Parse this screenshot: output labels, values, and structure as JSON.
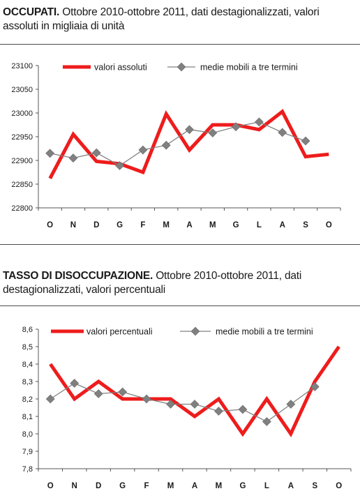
{
  "charts": [
    {
      "title_bold": "OCCUPATI.",
      "title_rest": " Ottobre 2010-ottobre 2011, dati destagionalizzati, valori assoluti in migliaia di unità"
    },
    {
      "title_bold": "TASSO DI DISOCCUPAZIONE.",
      "title_rest": " Ottobre 2010-ottobre 2011, dati destagionalizzati, valori percentuali"
    }
  ],
  "chart_data": [
    {
      "type": "line",
      "title": "OCCUPATI. Ottobre 2010-ottobre 2011, dati destagionalizzati, valori assoluti in migliaia di unità",
      "categories": [
        "O",
        "N",
        "D",
        "G",
        "F",
        "M",
        "A",
        "M",
        "G",
        "L",
        "A",
        "S",
        "O"
      ],
      "ylim": [
        22800,
        23100
      ],
      "yticks": [
        "22800",
        "22850",
        "22900",
        "22950",
        "23000",
        "23050",
        "23100"
      ],
      "grid": false,
      "legend_position": "top",
      "series": [
        {
          "name": "valori assoluti",
          "color": "#ee1c1c",
          "marker": "none",
          "values": [
            22862,
            22955,
            22898,
            22893,
            22875,
            22998,
            22922,
            22975,
            22975,
            22965,
            23003,
            22908,
            22913
          ]
        },
        {
          "name": "medie mobili a tre termini",
          "color": "#808080",
          "marker": "diamond",
          "values": [
            22915,
            22905,
            22916,
            22889,
            22922,
            22932,
            22965,
            22958,
            22971,
            22981,
            22959,
            22941,
            null
          ]
        }
      ]
    },
    {
      "type": "line",
      "title": "TASSO DI DISOCCUPAZIONE. Ottobre 2010-ottobre 2011, dati destagionalizzati, valori percentuali",
      "categories": [
        "O",
        "N",
        "D",
        "G",
        "F",
        "M",
        "A",
        "M",
        "G",
        "L",
        "A",
        "S",
        "O"
      ],
      "ylim": [
        7.8,
        8.6
      ],
      "yticks": [
        "7,8",
        "7,9",
        "8,0",
        "8,1",
        "8,2",
        "8,3",
        "8,4",
        "8,5",
        "8,6"
      ],
      "grid": false,
      "legend_position": "top",
      "series": [
        {
          "name": "valori percentuali",
          "color": "#ee1c1c",
          "marker": "none",
          "values": [
            8.4,
            8.2,
            8.3,
            8.2,
            8.2,
            8.2,
            8.1,
            8.2,
            8.0,
            8.2,
            8.0,
            8.3,
            8.5
          ]
        },
        {
          "name": "medie mobili a tre termini",
          "color": "#808080",
          "marker": "diamond",
          "values": [
            8.2,
            8.29,
            8.23,
            8.24,
            8.2,
            8.17,
            8.17,
            8.13,
            8.14,
            8.07,
            8.17,
            8.27,
            null
          ]
        }
      ]
    }
  ]
}
